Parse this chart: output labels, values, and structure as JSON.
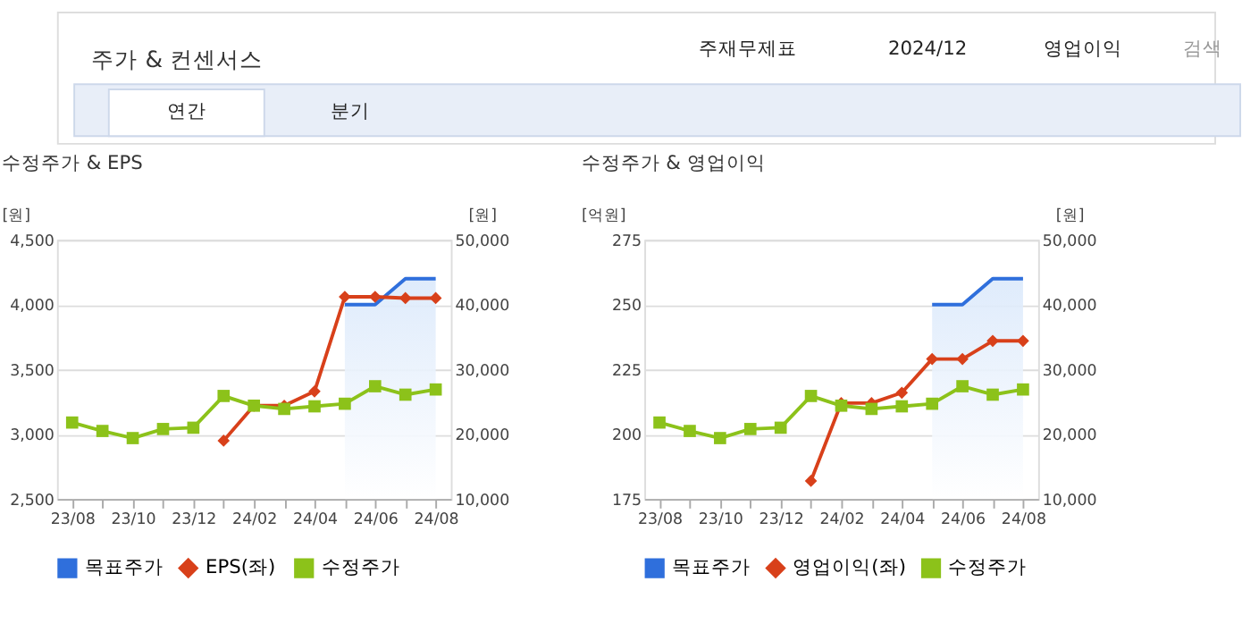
{
  "chart_data": [
    {
      "type": "line",
      "title": "수정주가 & EPS",
      "ylabel": "[원]",
      "y2label": "[원]",
      "annotations": [
        "주가 & 컨센서스",
        "주재무제표",
        "2024/12",
        "영업이익",
        "검색",
        "연간",
        "분기"
      ],
      "categories": [
        "23/08",
        null,
        "23/10",
        null,
        "23/12",
        null,
        "24/02",
        null,
        "24/04",
        null,
        "24/06",
        null,
        "24/08"
      ],
      "series": [
        {
          "name": "목표주가",
          "type": "area",
          "axis": "y2",
          "color": "#2f6fdc",
          "marker": "none",
          "values": [
            null,
            null,
            null,
            null,
            null,
            null,
            null,
            null,
            null,
            40000,
            40000,
            44000,
            44000
          ]
        },
        {
          "name": "EPS(좌)",
          "type": "line",
          "color": "#d8401a",
          "marker": "diamond",
          "values": [
            null,
            null,
            null,
            null,
            null,
            2950,
            3220,
            3220,
            3330,
            4060,
            4060,
            4050,
            4050
          ]
        },
        {
          "name": "수정주가",
          "type": "line",
          "axis": "y2",
          "color": "#8cc21a",
          "marker": "square",
          "values": [
            21800,
            20500,
            19400,
            20800,
            21000,
            25900,
            24400,
            23900,
            24300,
            24700,
            27400,
            26100,
            26900
          ]
        }
      ],
      "ylim": [
        2500,
        4500
      ],
      "yticks": [
        {
          "value": 2500,
          "label": "2,500"
        },
        {
          "value": 3000,
          "label": "3,000"
        },
        {
          "value": 3500,
          "label": "3,500"
        },
        {
          "value": 4000,
          "label": "4,000"
        },
        {
          "value": 4500,
          "label": "4,500"
        }
      ],
      "y2lim": [
        10000,
        50000
      ],
      "y2ticks": [
        {
          "value": 10000,
          "label": "10,000"
        },
        {
          "value": 20000,
          "label": "20,000"
        },
        {
          "value": 30000,
          "label": "30,000"
        },
        {
          "value": 40000,
          "label": "40,000"
        },
        {
          "value": 50000,
          "label": "50,000"
        }
      ],
      "grid": "y",
      "legend": "bottom",
      "line_style": "solid"
    },
    {
      "type": "line",
      "title": "수정주가 & 영업이익",
      "ylabel": "[억원]",
      "y2label": "[원]",
      "categories": [
        "23/08",
        null,
        "23/10",
        null,
        "23/12",
        null,
        "24/02",
        null,
        "24/04",
        null,
        "24/06",
        null,
        "24/08"
      ],
      "series": [
        {
          "name": "목표주가",
          "type": "area",
          "axis": "y2",
          "color": "#2f6fdc",
          "marker": "none",
          "values": [
            null,
            null,
            null,
            null,
            null,
            null,
            null,
            null,
            null,
            40000,
            40000,
            44000,
            44000
          ]
        },
        {
          "name": "영업이익(좌)",
          "type": "line",
          "color": "#d8401a",
          "marker": "diamond",
          "values": [
            null,
            null,
            null,
            null,
            null,
            182,
            212,
            212,
            216,
            229,
            229,
            236,
            236
          ]
        },
        {
          "name": "수정주가",
          "type": "line",
          "axis": "y2",
          "color": "#8cc21a",
          "marker": "square",
          "values": [
            21800,
            20500,
            19400,
            20800,
            21000,
            25900,
            24400,
            23900,
            24300,
            24700,
            27400,
            26100,
            26900
          ]
        }
      ],
      "ylim": [
        175,
        275
      ],
      "yticks": [
        175,
        200,
        225,
        250,
        275
      ],
      "y2lim": [
        10000,
        50000
      ],
      "y2ticks": [
        {
          "value": 10000,
          "label": "10,000"
        },
        {
          "value": 20000,
          "label": "20,000"
        },
        {
          "value": 30000,
          "label": "30,000"
        },
        {
          "value": 40000,
          "label": "40,000"
        },
        {
          "value": 50000,
          "label": "50,000"
        }
      ],
      "grid": "y",
      "legend": "bottom",
      "line_style": "solid"
    }
  ]
}
